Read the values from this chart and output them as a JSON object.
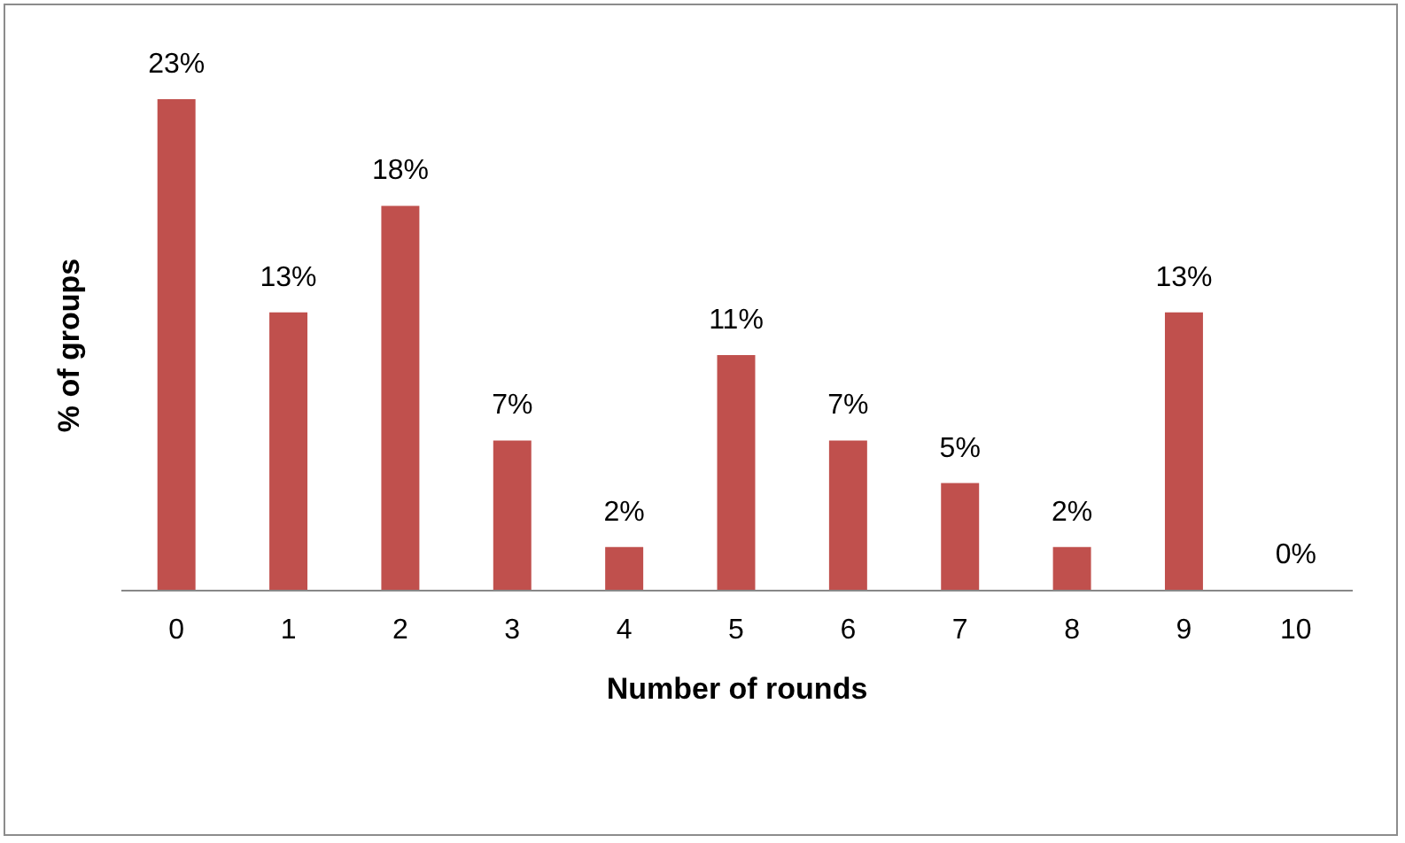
{
  "chart_data": {
    "type": "bar",
    "xlabel": "Number of rounds",
    "ylabel": "% of groups",
    "categories": [
      "0",
      "1",
      "2",
      "3",
      "4",
      "5",
      "6",
      "7",
      "8",
      "9",
      "10"
    ],
    "values": [
      23,
      13,
      18,
      7,
      2,
      11,
      7,
      5,
      2,
      13,
      0
    ],
    "value_labels": [
      "23%",
      "13%",
      "18%",
      "7%",
      "2%",
      "11%",
      "7%",
      "5%",
      "2%",
      "13%",
      "0%"
    ],
    "color": "#c0504d"
  }
}
